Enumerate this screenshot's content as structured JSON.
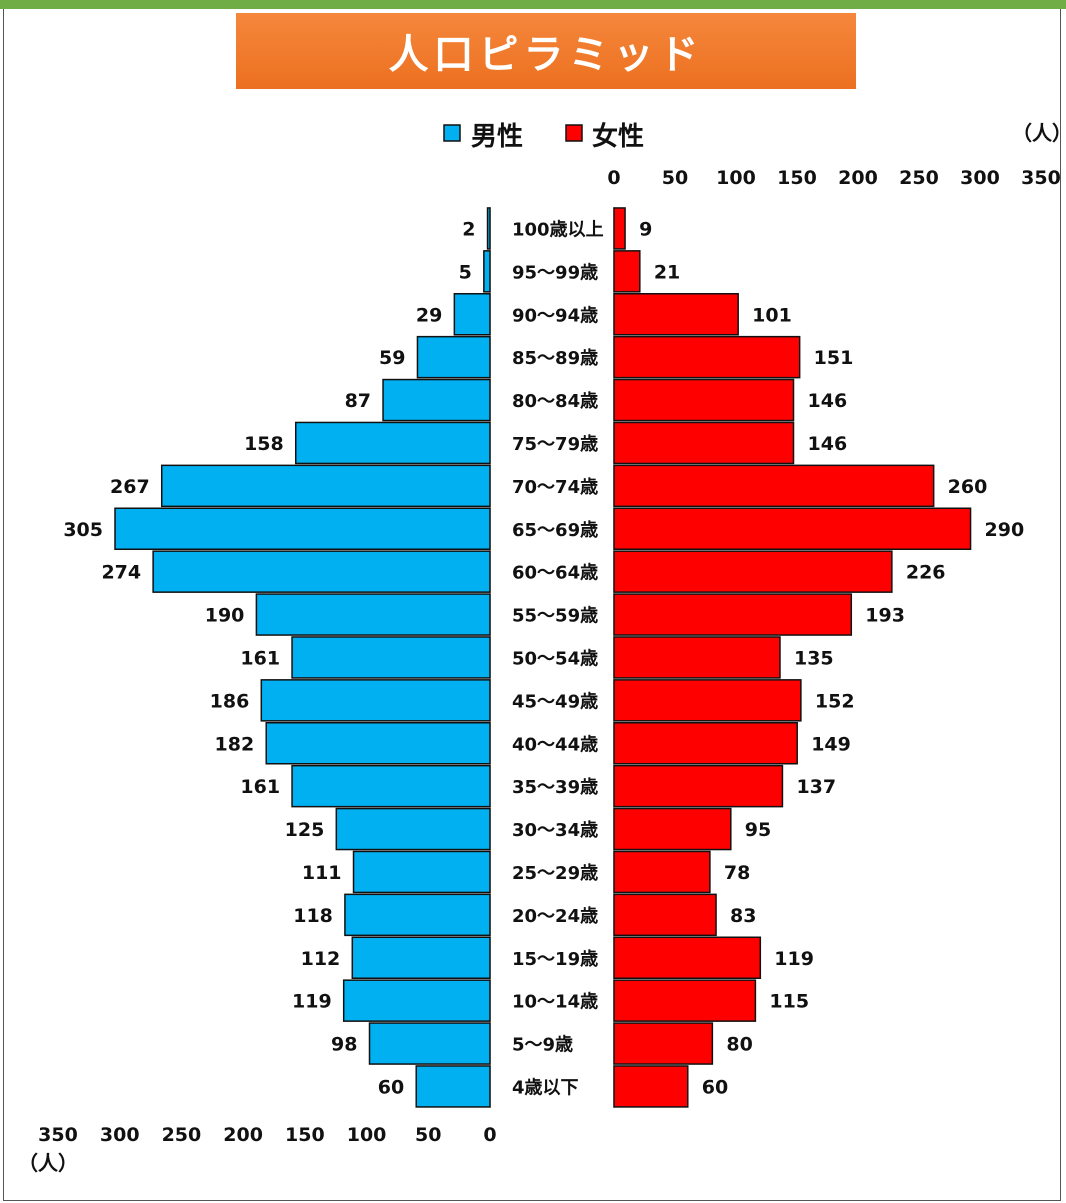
{
  "page": {
    "title": "人口ピラミッド"
  },
  "legend": {
    "male": {
      "label": "男性",
      "color": "#00b0f0"
    },
    "female": {
      "label": "女性",
      "color": "#ff0000"
    }
  },
  "axis": {
    "unit_top": "（人）",
    "unit_bottom": "（人）"
  },
  "chart_data": {
    "type": "bar",
    "orientation": "horizontal-pyramid",
    "title": "人口ピラミッド",
    "categories": [
      "100歳以上",
      "95～99歳",
      "90～94歳",
      "85～89歳",
      "80～84歳",
      "75～79歳",
      "70～74歳",
      "65～69歳",
      "60～64歳",
      "55～59歳",
      "50～54歳",
      "45～49歳",
      "40～44歳",
      "35～39歳",
      "30～34歳",
      "25～29歳",
      "20～24歳",
      "15～19歳",
      "10～14歳",
      "5～9歳",
      "4歳以下"
    ],
    "series": [
      {
        "name": "男性",
        "color": "#00b0f0",
        "values": [
          2,
          5,
          29,
          59,
          87,
          158,
          267,
          305,
          274,
          190,
          161,
          186,
          182,
          161,
          125,
          111,
          118,
          112,
          119,
          98,
          60
        ]
      },
      {
        "name": "女性",
        "color": "#ff0000",
        "values": [
          9,
          21,
          101,
          151,
          146,
          146,
          260,
          290,
          226,
          193,
          135,
          152,
          149,
          137,
          95,
          78,
          83,
          119,
          115,
          80,
          60
        ]
      }
    ],
    "xlim": [
      0,
      350
    ],
    "ticks": [
      "0",
      "50",
      "100",
      "150",
      "200",
      "250",
      "300",
      "350"
    ],
    "male_ticks": [
      "350",
      "300",
      "250",
      "200",
      "150",
      "100",
      "50",
      "0"
    ],
    "female_ticks": [
      "0",
      "50",
      "100",
      "150",
      "200",
      "250",
      "300",
      "350"
    ],
    "legend_position": "top",
    "grid": false
  }
}
